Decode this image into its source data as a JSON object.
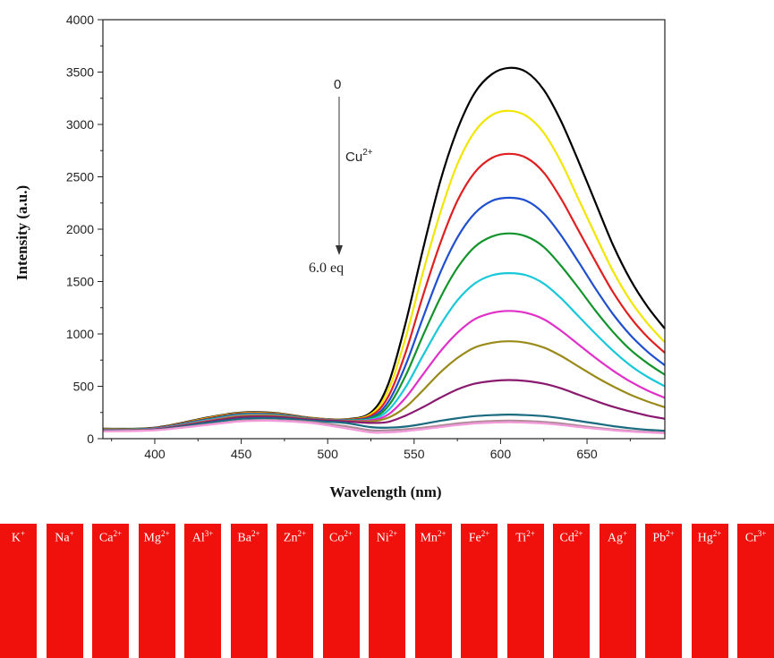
{
  "chart_data": {
    "type": "line",
    "xlabel": "Wavelength (nm)",
    "ylabel": "Intensity (a.u.)",
    "xlim": [
      370,
      695
    ],
    "ylim": [
      0,
      4000
    ],
    "x_ticks": [
      400,
      450,
      500,
      550,
      600,
      650
    ],
    "y_ticks": [
      0,
      500,
      1000,
      1500,
      2000,
      2500,
      3000,
      3500,
      4000
    ],
    "x": [
      370,
      400,
      430,
      450,
      470,
      490,
      510,
      525,
      535,
      545,
      555,
      565,
      575,
      585,
      595,
      605,
      615,
      625,
      635,
      645,
      655,
      665,
      675,
      685,
      695
    ],
    "series": [
      {
        "color": "#000000",
        "values": [
          95,
          105,
          200,
          250,
          245,
          200,
          185,
          250,
          520,
          1100,
          1800,
          2450,
          2950,
          3300,
          3480,
          3540,
          3500,
          3330,
          3030,
          2650,
          2250,
          1850,
          1520,
          1260,
          1050
        ]
      },
      {
        "color": "#f2e600",
        "values": [
          92,
          102,
          195,
          245,
          240,
          198,
          182,
          235,
          460,
          960,
          1580,
          2150,
          2620,
          2930,
          3090,
          3130,
          3080,
          2920,
          2640,
          2290,
          1940,
          1600,
          1320,
          1100,
          920
        ]
      },
      {
        "color": "#e02020",
        "values": [
          90,
          100,
          190,
          240,
          236,
          196,
          180,
          220,
          400,
          820,
          1360,
          1860,
          2270,
          2540,
          2680,
          2720,
          2680,
          2540,
          2290,
          1990,
          1690,
          1400,
          1160,
          970,
          820
        ]
      },
      {
        "color": "#1f4fd0",
        "values": [
          88,
          98,
          185,
          235,
          232,
          194,
          178,
          205,
          350,
          700,
          1150,
          1580,
          1920,
          2150,
          2270,
          2300,
          2270,
          2150,
          1940,
          1690,
          1430,
          1190,
          990,
          830,
          700
        ]
      },
      {
        "color": "#13932b",
        "values": [
          86,
          96,
          180,
          230,
          228,
          192,
          176,
          195,
          310,
          600,
          980,
          1340,
          1630,
          1830,
          1930,
          1960,
          1930,
          1830,
          1650,
          1440,
          1220,
          1020,
          850,
          720,
          610
        ]
      },
      {
        "color": "#18c8d8",
        "values": [
          84,
          94,
          175,
          225,
          224,
          190,
          174,
          185,
          270,
          490,
          790,
          1080,
          1320,
          1480,
          1560,
          1580,
          1560,
          1480,
          1340,
          1170,
          1000,
          840,
          700,
          590,
          500
        ]
      },
      {
        "color": "#e030c8",
        "values": [
          82,
          92,
          170,
          220,
          220,
          188,
          172,
          175,
          230,
          390,
          610,
          830,
          1010,
          1140,
          1200,
          1220,
          1200,
          1140,
          1030,
          900,
          770,
          650,
          545,
          460,
          390
        ]
      },
      {
        "color": "#9a8a1a",
        "values": [
          80,
          90,
          165,
          215,
          216,
          186,
          170,
          165,
          200,
          300,
          460,
          630,
          770,
          870,
          915,
          930,
          915,
          870,
          790,
          690,
          590,
          500,
          420,
          355,
          300
        ]
      },
      {
        "color": "#8a1a70",
        "values": [
          78,
          88,
          160,
          205,
          208,
          182,
          165,
          150,
          160,
          220,
          300,
          390,
          470,
          525,
          550,
          560,
          550,
          525,
          480,
          420,
          360,
          305,
          260,
          220,
          190
        ]
      },
      {
        "color": "#1a6a80",
        "values": [
          75,
          85,
          150,
          190,
          195,
          172,
          150,
          110,
          105,
          115,
          140,
          170,
          195,
          215,
          225,
          230,
          225,
          215,
          195,
          170,
          145,
          120,
          100,
          85,
          75
        ]
      },
      {
        "color": "#b08a9a",
        "values": [
          72,
          82,
          135,
          170,
          175,
          160,
          120,
          80,
          80,
          90,
          105,
          125,
          145,
          160,
          168,
          172,
          168,
          160,
          145,
          125,
          105,
          88,
          75,
          65,
          58
        ]
      },
      {
        "color": "#f39adb",
        "values": [
          70,
          80,
          130,
          165,
          170,
          150,
          100,
          60,
          60,
          72,
          90,
          110,
          130,
          145,
          153,
          157,
          153,
          145,
          130,
          112,
          95,
          80,
          68,
          60,
          52
        ]
      }
    ],
    "annotations": {
      "top_label": "0",
      "middle_label_base": "Cu",
      "middle_label_sup": "2+",
      "bottom_label": "6.0 eq"
    },
    "grid": false
  },
  "photo_strip": {
    "vials": [
      {
        "base": "K",
        "sup": "+"
      },
      {
        "base": "Na",
        "sup": "+"
      },
      {
        "base": "Ca",
        "sup": "2+"
      },
      {
        "base": "Mg",
        "sup": "2+"
      },
      {
        "base": "Al",
        "sup": "3+"
      },
      {
        "base": "Ba",
        "sup": "2+"
      },
      {
        "base": "Zn",
        "sup": "2+"
      },
      {
        "base": "Co",
        "sup": "2+"
      },
      {
        "base": "Ni",
        "sup": "2+"
      },
      {
        "base": "Mn",
        "sup": "2+"
      },
      {
        "base": "Fe",
        "sup": "2+"
      },
      {
        "base": "Ti",
        "sup": "2+"
      },
      {
        "base": "Cd",
        "sup": "2+"
      },
      {
        "base": "Ag",
        "sup": "+"
      },
      {
        "base": "Pb",
        "sup": "2+"
      },
      {
        "base": "Hg",
        "sup": "2+"
      },
      {
        "base": "Cr",
        "sup": "3+"
      }
    ],
    "color": "#f0110c"
  }
}
